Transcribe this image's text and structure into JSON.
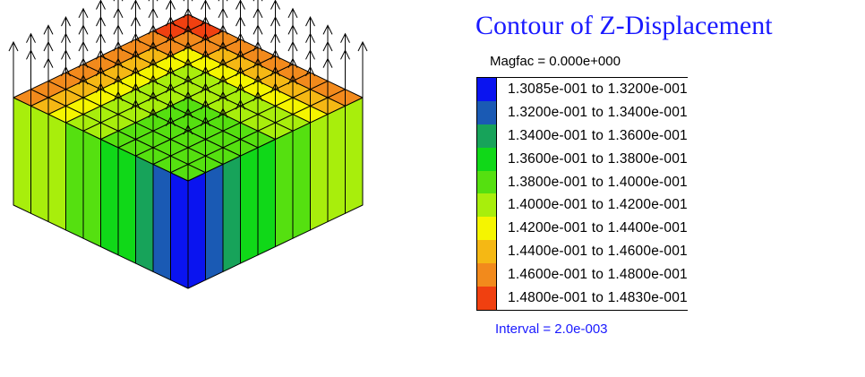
{
  "legend": {
    "title": "Contour of Z-Displacement",
    "magfac": "Magfac =  0.000e+000",
    "interval": "Interval =  2.0e-003",
    "bands": [
      {
        "label": "1.3085e-001 to  1.3200e-001",
        "color": "#0a14f0"
      },
      {
        "label": "1.3200e-001 to  1.3400e-001",
        "color": "#1a5ab4"
      },
      {
        "label": "1.3400e-001 to  1.3600e-001",
        "color": "#17a35a"
      },
      {
        "label": "1.3600e-001 to  1.3800e-001",
        "color": "#10d818"
      },
      {
        "label": "1.3800e-001 to  1.4000e-001",
        "color": "#55e010"
      },
      {
        "label": "1.4000e-001 to  1.4200e-001",
        "color": "#a8ee0c"
      },
      {
        "label": "1.4200e-001 to  1.4400e-001",
        "color": "#f5f500"
      },
      {
        "label": "1.4400e-001 to  1.4600e-001",
        "color": "#f5b814"
      },
      {
        "label": "1.4600e-001 to  1.4800e-001",
        "color": "#f28a1c"
      },
      {
        "label": "1.4800e-001 to  1.4830e-001",
        "color": "#f04010"
      }
    ]
  }
}
